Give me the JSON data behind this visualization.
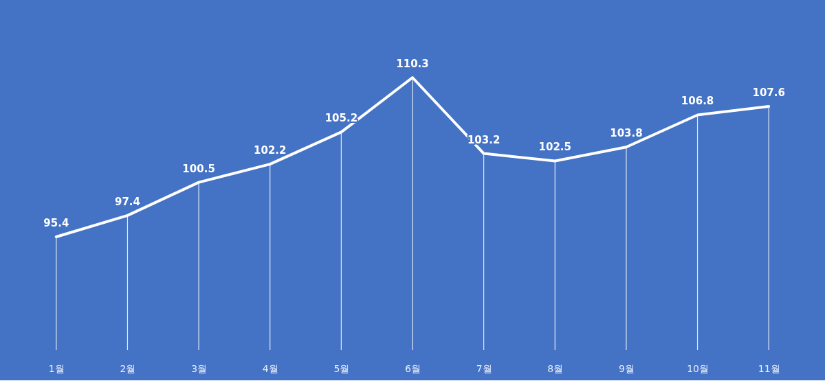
{
  "chart_data": {
    "type": "line",
    "categories": [
      "1월",
      "2월",
      "3월",
      "4월",
      "5월",
      "6월",
      "7월",
      "8월",
      "9월",
      "10월",
      "11월"
    ],
    "series": [
      {
        "color": "#ffffff",
        "values": [
          95.4,
          97.4,
          100.5,
          102.2,
          105.2,
          110.3,
          103.2,
          102.5,
          103.8,
          106.8,
          107.6
        ]
      }
    ],
    "data_labels": true,
    "grid": "x",
    "marker": "none",
    "line_style": "solid"
  }
}
